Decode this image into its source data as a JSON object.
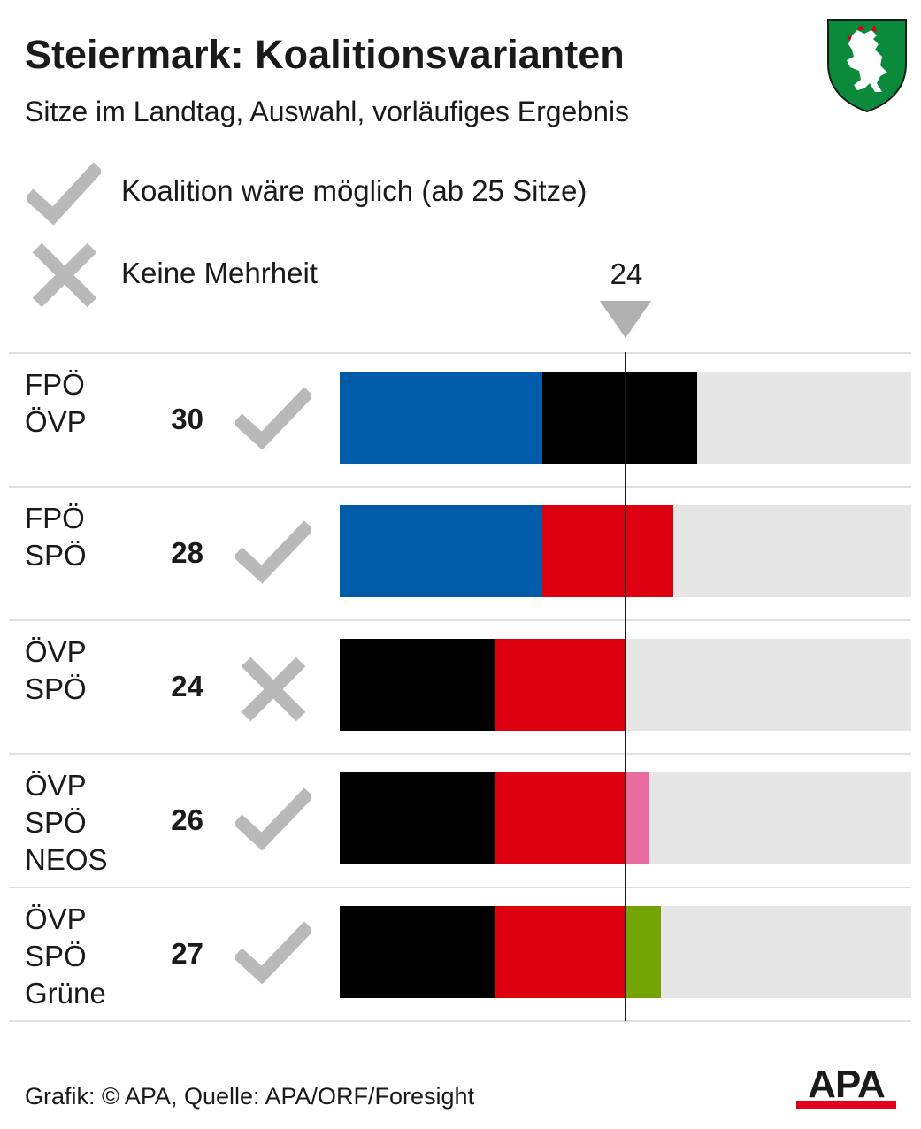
{
  "title": "Steiermark: Koalitionsvarianten",
  "subtitle": "Sitze im Landtag, Auswahl, vorläufiges Ergebnis",
  "legend": {
    "possible": {
      "icon": "check-icon",
      "label": "Koalition wäre möglich (ab 25 Sitze)"
    },
    "none": {
      "icon": "cross-icon",
      "label": "Keine Mehrheit"
    }
  },
  "threshold": {
    "label": "24",
    "value": 24
  },
  "colors": {
    "FPÖ": "#005ba9",
    "ÖVP": "#000000",
    "SPÖ": "#dc0010",
    "NEOS": "#e96c9f",
    "Grüne": "#74a304",
    "track": "#e6e6e6",
    "icon": "#b9b9b9"
  },
  "chart_data": {
    "type": "bar",
    "stacked": true,
    "orientation": "horizontal",
    "xlim": [
      0,
      48
    ],
    "threshold": 24,
    "rows": [
      {
        "parties": [
          "FPÖ",
          "ÖVP"
        ],
        "seats_label": "30",
        "total": 30,
        "possible": true,
        "segments": [
          {
            "party": "FPÖ",
            "value": 17
          },
          {
            "party": "ÖVP",
            "value": 13
          }
        ]
      },
      {
        "parties": [
          "FPÖ",
          "SPÖ"
        ],
        "seats_label": "28",
        "total": 28,
        "possible": true,
        "segments": [
          {
            "party": "FPÖ",
            "value": 17
          },
          {
            "party": "SPÖ",
            "value": 11
          }
        ]
      },
      {
        "parties": [
          "ÖVP",
          "SPÖ"
        ],
        "seats_label": "24",
        "total": 24,
        "possible": false,
        "segments": [
          {
            "party": "ÖVP",
            "value": 13
          },
          {
            "party": "SPÖ",
            "value": 11
          }
        ]
      },
      {
        "parties": [
          "ÖVP",
          "SPÖ",
          "NEOS"
        ],
        "seats_label": "26",
        "total": 26,
        "possible": true,
        "segments": [
          {
            "party": "ÖVP",
            "value": 13
          },
          {
            "party": "SPÖ",
            "value": 11
          },
          {
            "party": "NEOS",
            "value": 2
          }
        ]
      },
      {
        "parties": [
          "ÖVP",
          "SPÖ",
          "Grüne"
        ],
        "seats_label": "27",
        "total": 27,
        "possible": true,
        "segments": [
          {
            "party": "ÖVP",
            "value": 13
          },
          {
            "party": "SPÖ",
            "value": 11
          },
          {
            "party": "Grüne",
            "value": 3
          }
        ]
      }
    ]
  },
  "footer": {
    "source": "Grafik: © APA, Quelle: APA/ORF/Foresight",
    "logo_text": "APA"
  }
}
